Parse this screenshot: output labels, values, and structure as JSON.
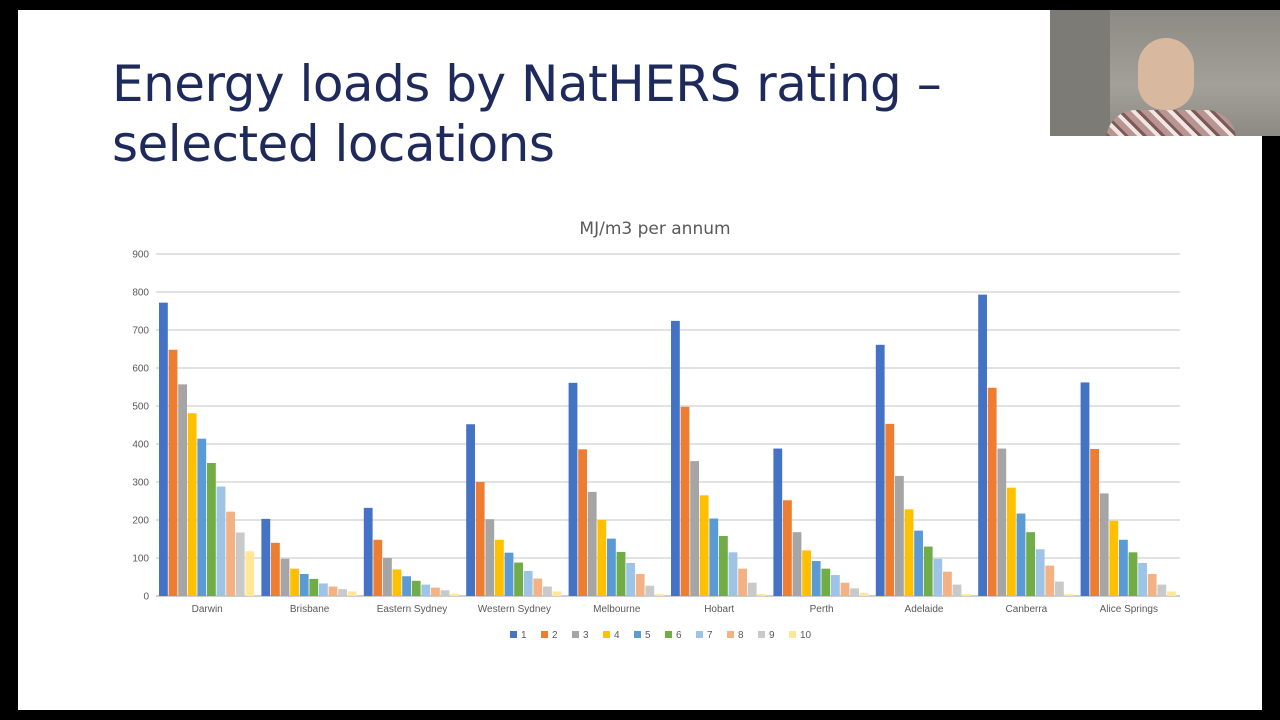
{
  "slide": {
    "title": "Energy loads by NatHERS rating – selected locations"
  },
  "chart_data": {
    "type": "bar",
    "title": "MJ/m3 per annum",
    "ylim": [
      0,
      900
    ],
    "yticks": [
      0,
      100,
      200,
      300,
      400,
      500,
      600,
      700,
      800,
      900
    ],
    "grid": true,
    "legend_position": "bottom",
    "categories": [
      "Darwin",
      "Brisbane",
      "Eastern Sydney",
      "Western Sydney",
      "Melbourne",
      "Hobart",
      "Perth",
      "Adelaide",
      "Canberra",
      "Alice Springs"
    ],
    "series": [
      {
        "name": "1",
        "color": "#4472c4",
        "values": [
          772,
          203,
          232,
          452,
          561,
          724,
          388,
          661,
          793,
          562
        ]
      },
      {
        "name": "2",
        "color": "#ed7d31",
        "values": [
          648,
          140,
          148,
          300,
          386,
          498,
          252,
          453,
          548,
          387
        ]
      },
      {
        "name": "3",
        "color": "#a5a5a5",
        "values": [
          557,
          98,
          100,
          202,
          274,
          355,
          168,
          316,
          388,
          270
        ]
      },
      {
        "name": "4",
        "color": "#ffc000",
        "values": [
          481,
          72,
          70,
          148,
          200,
          265,
          120,
          228,
          285,
          198
        ]
      },
      {
        "name": "5",
        "color": "#5b9bd5",
        "values": [
          414,
          58,
          52,
          114,
          151,
          204,
          92,
          172,
          217,
          148
        ]
      },
      {
        "name": "6",
        "color": "#70ad47",
        "values": [
          350,
          45,
          40,
          88,
          116,
          158,
          72,
          130,
          168,
          115
        ]
      },
      {
        "name": "7",
        "color": "#9dc3e6",
        "values": [
          288,
          33,
          30,
          66,
          87,
          115,
          55,
          98,
          123,
          87
        ]
      },
      {
        "name": "8",
        "color": "#f4b183",
        "values": [
          222,
          25,
          22,
          46,
          58,
          72,
          35,
          64,
          80,
          58
        ]
      },
      {
        "name": "9",
        "color": "#c9c9c9",
        "values": [
          167,
          18,
          15,
          25,
          27,
          35,
          20,
          30,
          38,
          30
        ]
      },
      {
        "name": "10",
        "color": "#ffe699",
        "values": [
          118,
          12,
          6,
          12,
          5,
          5,
          8,
          5,
          5,
          12
        ]
      }
    ]
  }
}
